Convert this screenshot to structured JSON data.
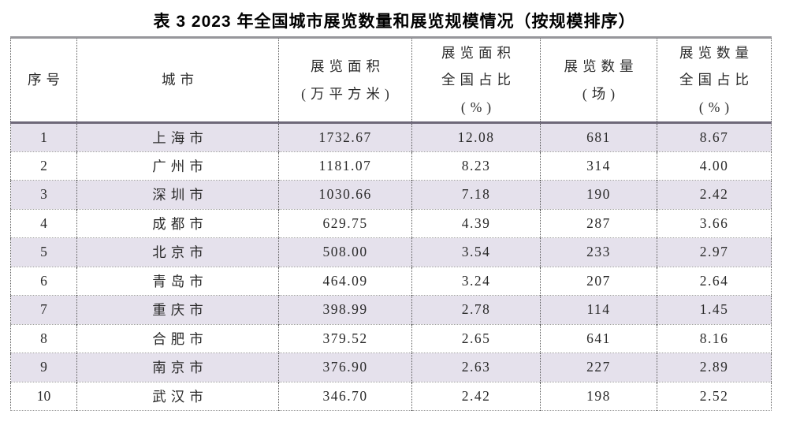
{
  "title": "表 3 2023 年全国城市展览数量和展览规模情况（按规模排序）",
  "table": {
    "columns": [
      {
        "id": "rank",
        "label_lines": [
          "序号"
        ]
      },
      {
        "id": "city",
        "label_lines": [
          "城市"
        ]
      },
      {
        "id": "area",
        "label_lines": [
          "展览面积",
          "(万平方米)"
        ]
      },
      {
        "id": "area_share",
        "label_lines": [
          "展览面积",
          "全国占比",
          "(%)"
        ]
      },
      {
        "id": "count",
        "label_lines": [
          "展览数量",
          "(场)"
        ]
      },
      {
        "id": "count_share",
        "label_lines": [
          "展览数量",
          "全国占比",
          "(%)"
        ]
      }
    ],
    "rows": [
      [
        "1",
        "上海市",
        "1732.67",
        "12.08",
        "681",
        "8.67"
      ],
      [
        "2",
        "广州市",
        "1181.07",
        "8.23",
        "314",
        "4.00"
      ],
      [
        "3",
        "深圳市",
        "1030.66",
        "7.18",
        "190",
        "2.42"
      ],
      [
        "4",
        "成都市",
        "629.75",
        "4.39",
        "287",
        "3.66"
      ],
      [
        "5",
        "北京市",
        "508.00",
        "3.54",
        "233",
        "2.97"
      ],
      [
        "6",
        "青岛市",
        "464.09",
        "3.24",
        "207",
        "2.64"
      ],
      [
        "7",
        "重庆市",
        "398.99",
        "2.78",
        "114",
        "1.45"
      ],
      [
        "8",
        "合肥市",
        "379.52",
        "2.65",
        "641",
        "8.16"
      ],
      [
        "9",
        "南京市",
        "376.90",
        "2.63",
        "227",
        "2.89"
      ],
      [
        "10",
        "武汉市",
        "346.70",
        "2.42",
        "198",
        "2.52"
      ]
    ]
  },
  "colors": {
    "stripe_row_background": "#e5e1ec",
    "table_top_rule": "#97979b",
    "header_bottom_rule": "#6e6879",
    "cell_border_dotted": "#5a5a5a",
    "text": "#2a2a2a"
  }
}
